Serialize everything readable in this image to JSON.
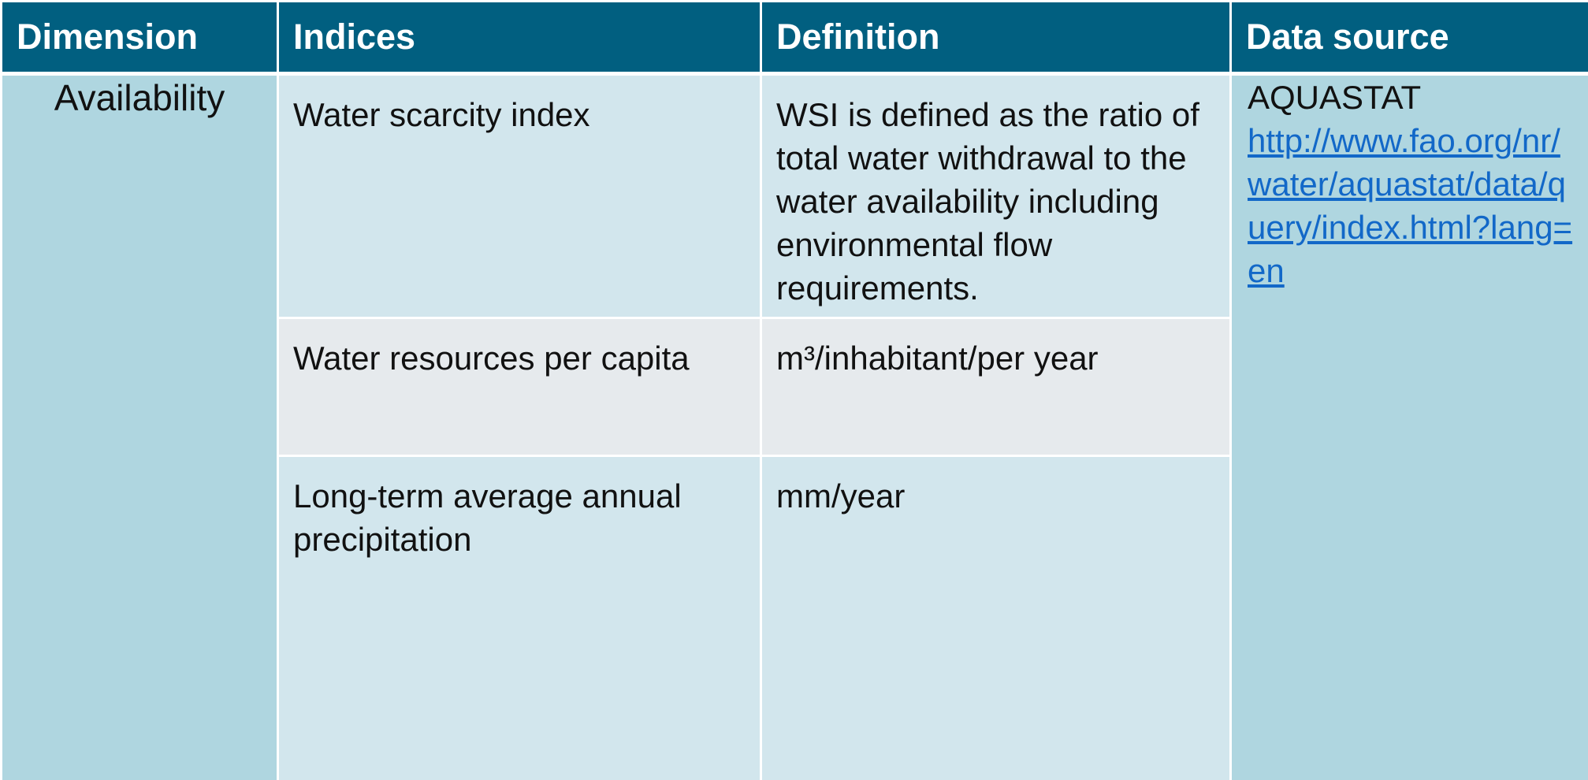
{
  "table": {
    "headers": [
      "Dimension",
      "Indices",
      "Definition",
      "Data source"
    ],
    "dimension": "Availability",
    "rows": [
      {
        "index": "Water scarcity index",
        "definition": "WSI is defined as the ratio of total water withdrawal to the water availability including environmental flow requirements."
      },
      {
        "index": "Water resources per capita",
        "definition": "m³/inhabitant/per year"
      },
      {
        "index": "Long-term average annual precipitation",
        "definition": "mm/year"
      }
    ],
    "source": {
      "name": "AQUASTAT",
      "link": "http://www.fao.org/nr/water/aquastat/data/query/index.html?lang=en"
    }
  },
  "colors": {
    "header_bg": "#015f80",
    "header_text": "#ffffff",
    "dimension_bg": "#afd6e0",
    "row_light": "#d2e6ed",
    "row_gray": "#e6eaed",
    "link": "#1268c8"
  }
}
